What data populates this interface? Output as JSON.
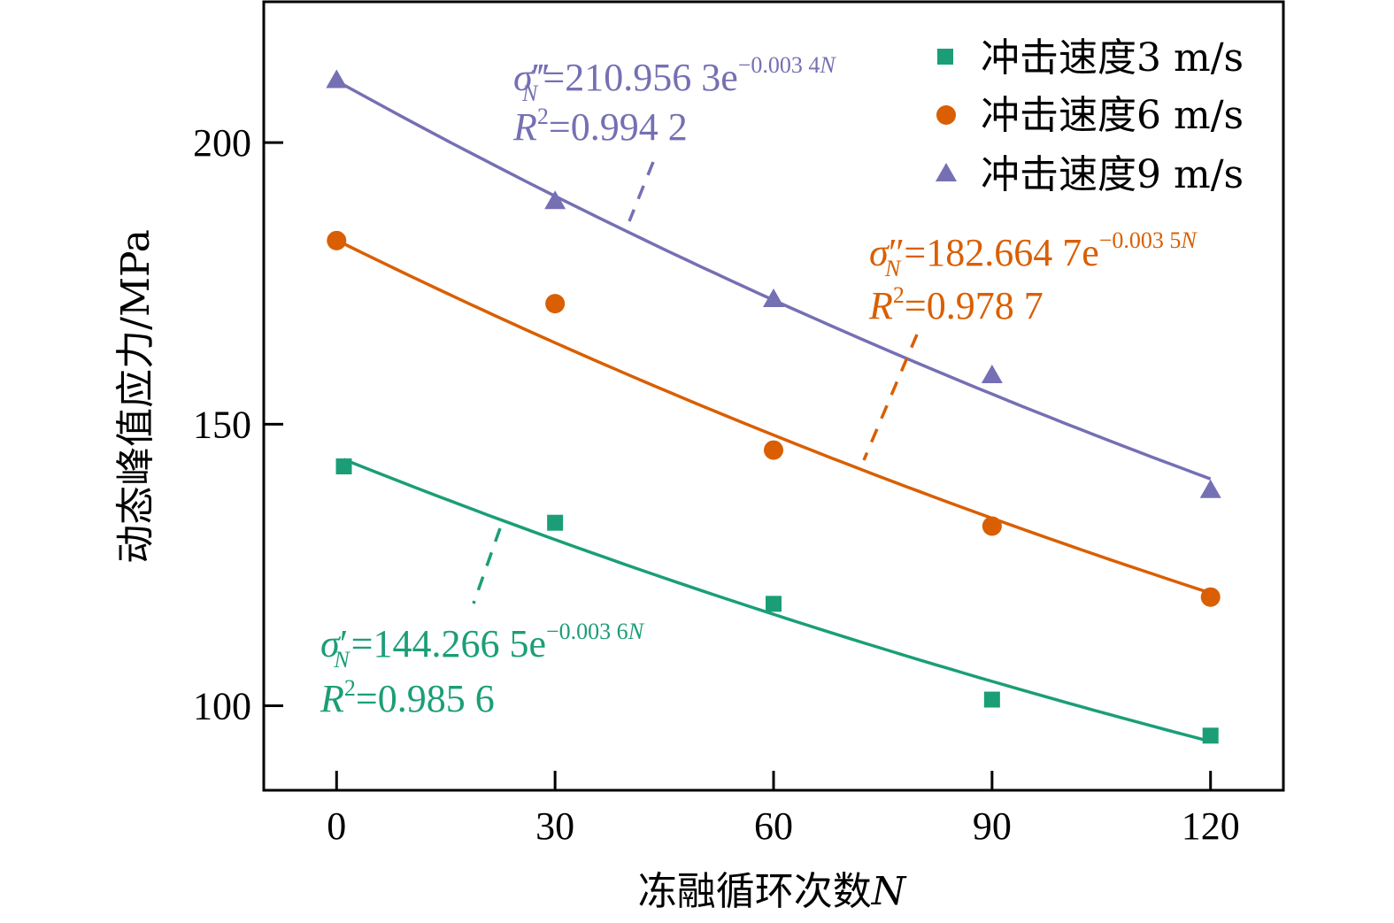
{
  "chart_data": {
    "type": "scatter",
    "title": "",
    "xlabel": "冻融循环次数",
    "xlabel_var": "N",
    "ylabel": "动态峰值应力/MPa",
    "xlim": [
      -10,
      130
    ],
    "ylim": [
      85,
      225
    ],
    "xticks": [
      0,
      30,
      60,
      90,
      120
    ],
    "yticks": [
      100,
      150,
      200
    ],
    "grid": false,
    "legend_position": "top-right",
    "series": [
      {
        "name": "冲击速度3 m/s",
        "marker": "square",
        "color": "#1b9e77",
        "x": [
          1,
          30,
          60,
          90,
          120
        ],
        "y": [
          142.5,
          132.5,
          118.1,
          101.1,
          94.7
        ],
        "fit": {
          "a": 144.2665,
          "b": -0.0036,
          "label_lhs": "σ",
          "label_prime": "′",
          "label_sub": "N",
          "label_rhs": "=144.266 5e",
          "label_exp": "−0.003 6",
          "label_exp_var": "N",
          "r2_label": "R",
          "r2_sup": "2",
          "r2_value": "=0.985 6"
        }
      },
      {
        "name": "冲击速度6 m/s",
        "marker": "circle",
        "color": "#d95f02",
        "x": [
          0,
          30,
          60,
          90,
          120
        ],
        "y": [
          182.6,
          171.4,
          145.4,
          131.9,
          119.3
        ],
        "fit": {
          "a": 182.6647,
          "b": -0.0035,
          "label_lhs": "σ",
          "label_prime": "″",
          "label_sub": "N",
          "label_rhs": "=182.664 7e",
          "label_exp": "−0.003 5",
          "label_exp_var": "N",
          "r2_label": "R",
          "r2_sup": "2",
          "r2_value": "=0.978 7"
        }
      },
      {
        "name": "冲击速度9 m/s",
        "marker": "triangle",
        "color": "#7570b3",
        "x": [
          0,
          30,
          60,
          90,
          120
        ],
        "y": [
          211.1,
          189.6,
          172.2,
          158.7,
          138.3
        ],
        "fit": {
          "a": 210.9563,
          "b": -0.0034,
          "label_lhs": "σ",
          "label_prime": "‴",
          "label_sub": "N",
          "label_rhs": "=210.956 3e",
          "label_exp": "−0.003 4",
          "label_exp_var": "N",
          "r2_label": "R",
          "r2_sup": "2",
          "r2_value": "=0.994 2"
        }
      }
    ]
  }
}
